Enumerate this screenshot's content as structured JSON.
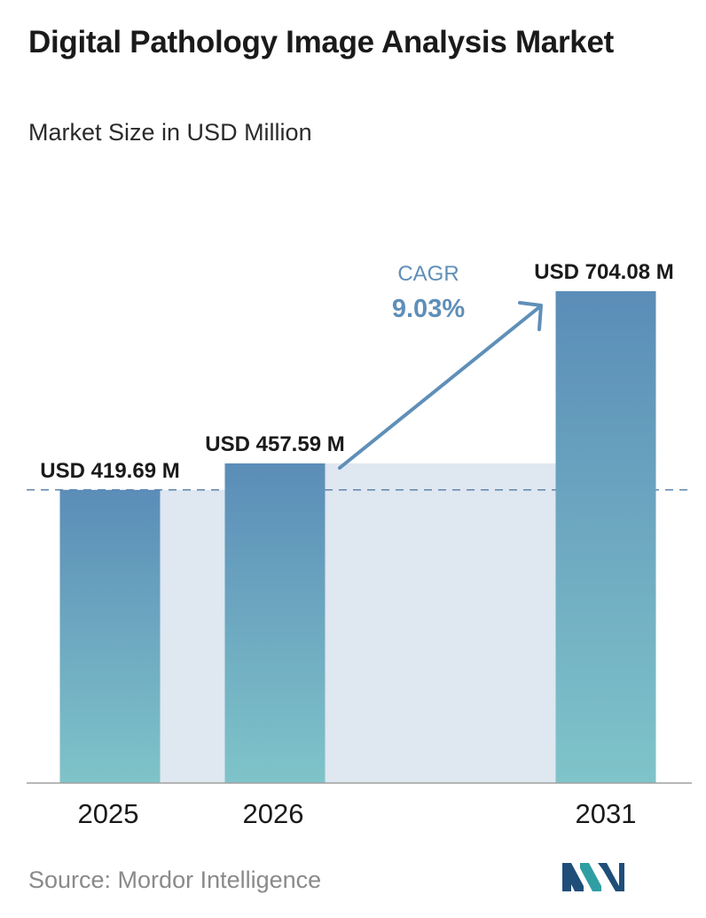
{
  "header": {
    "title": "Digital Pathology Image Analysis Market",
    "subtitle": "Market Size in USD Million"
  },
  "chart_data": {
    "type": "bar",
    "title": "Digital Pathology Image Analysis Market",
    "subtitle": "Market Size in USD Million",
    "categories": [
      "2025",
      "2026",
      "2031"
    ],
    "values": [
      419.69,
      457.59,
      704.08
    ],
    "value_labels": [
      "USD 419.69 M",
      "USD 457.59 M",
      "USD 704.08 M"
    ],
    "xlabel": "",
    "ylabel": "",
    "grid": false,
    "annotation": {
      "label": "CAGR",
      "value": "9.03%"
    },
    "colors": {
      "bar_top": "#5b8db8",
      "bar_bottom": "#7fc4c9",
      "band": "#dfe7f1",
      "arrow": "#5f8fb8",
      "dashed_line": "#5f87ad",
      "axis": "#a0a0a0"
    }
  },
  "footer": {
    "source": "Source:  Mordor Intelligence",
    "logo_colors": [
      "#1f4e79",
      "#2f9ea3"
    ]
  }
}
